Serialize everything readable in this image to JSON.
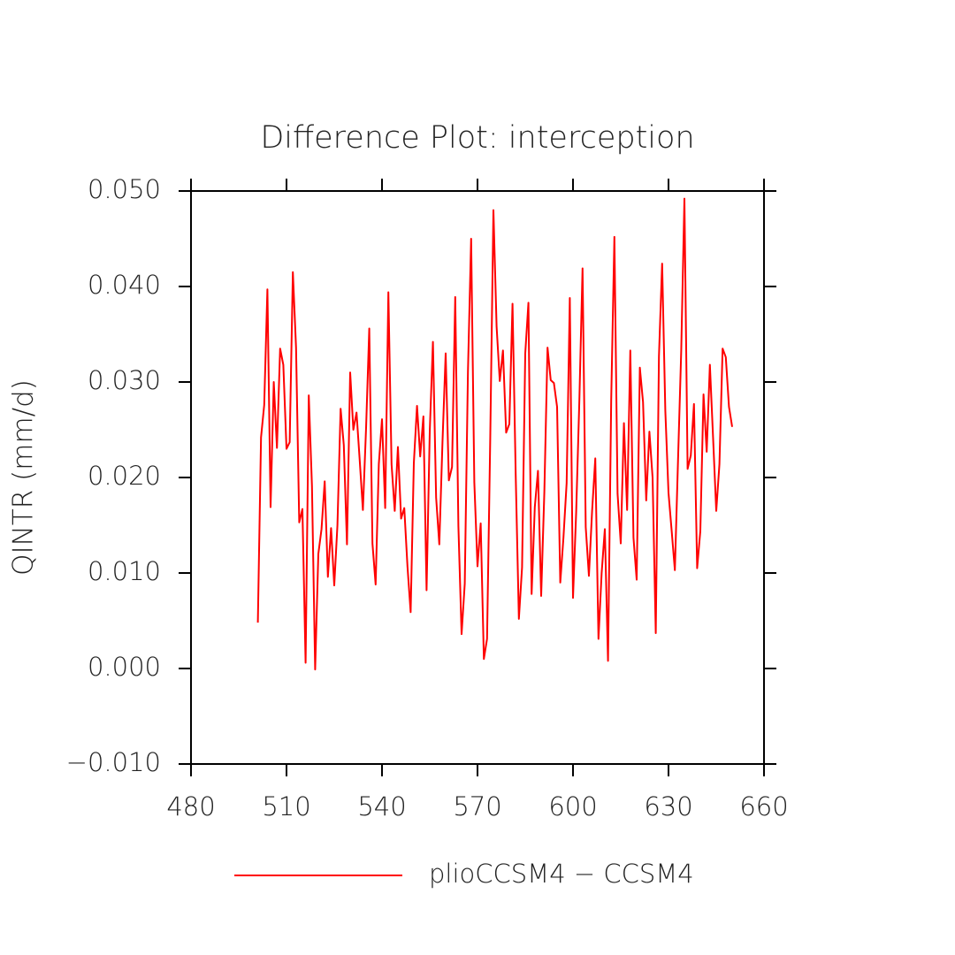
{
  "chart_data": {
    "type": "line",
    "title": "Difference Plot: interception",
    "y_label": "QINTR  (mm/d)",
    "x": [
      501,
      502,
      503,
      504,
      505,
      506,
      507,
      508,
      509,
      510,
      511,
      512,
      513,
      514,
      515,
      516,
      517,
      518,
      519,
      520,
      521,
      522,
      523,
      524,
      525,
      526,
      527,
      528,
      529,
      530,
      531,
      532,
      533,
      534,
      535,
      536,
      537,
      538,
      539,
      540,
      541,
      542,
      543,
      544,
      545,
      546,
      547,
      548,
      549,
      550,
      551,
      552,
      553,
      554,
      555,
      556,
      557,
      558,
      559,
      560,
      561,
      562,
      563,
      564,
      565,
      566,
      567,
      568,
      569,
      570,
      571,
      572,
      573,
      574,
      575,
      576,
      577,
      578,
      579,
      580,
      581,
      582,
      583,
      584,
      585,
      586,
      587,
      588,
      589,
      590,
      591,
      592,
      593,
      594,
      595,
      596,
      597,
      598,
      599,
      600,
      601,
      602,
      603,
      604,
      605,
      606,
      607,
      608,
      609,
      610,
      611,
      612,
      613,
      614,
      615,
      616,
      617,
      618,
      619,
      620,
      621,
      622,
      623,
      624,
      625,
      626,
      627,
      628,
      629,
      630,
      631,
      632,
      633,
      634,
      635,
      636,
      637,
      638,
      639,
      640,
      641,
      642,
      643,
      644,
      645,
      646,
      647,
      648,
      649,
      650
    ],
    "series": [
      {
        "name": "plioCCSM4 − CCSM4",
        "color": "#ff0000",
        "values": [
          0.0048,
          0.0242,
          0.0276,
          0.0397,
          0.0169,
          0.03,
          0.0231,
          0.0335,
          0.0318,
          0.023,
          0.0237,
          0.0415,
          0.0336,
          0.0153,
          0.0167,
          0.0006,
          0.0286,
          0.0191,
          -0.0001,
          0.012,
          0.0146,
          0.0196,
          0.0096,
          0.0147,
          0.0087,
          0.015,
          0.0272,
          0.0234,
          0.013,
          0.031,
          0.025,
          0.0268,
          0.0218,
          0.0166,
          0.0252,
          0.0356,
          0.0131,
          0.0088,
          0.0214,
          0.0261,
          0.0168,
          0.0394,
          0.0214,
          0.0165,
          0.0232,
          0.0157,
          0.0168,
          0.0107,
          0.0059,
          0.0215,
          0.0275,
          0.0222,
          0.0264,
          0.0082,
          0.0248,
          0.0342,
          0.0179,
          0.013,
          0.0237,
          0.033,
          0.0197,
          0.0211,
          0.0389,
          0.0149,
          0.0036,
          0.0089,
          0.0311,
          0.045,
          0.0195,
          0.0107,
          0.0152,
          0.001,
          0.0031,
          0.024,
          0.048,
          0.0358,
          0.0301,
          0.0333,
          0.0247,
          0.0256,
          0.0382,
          0.0203,
          0.0052,
          0.0106,
          0.033,
          0.0383,
          0.0078,
          0.0169,
          0.0207,
          0.0076,
          0.0185,
          0.0336,
          0.0302,
          0.0299,
          0.0274,
          0.009,
          0.0137,
          0.0194,
          0.0388,
          0.0074,
          0.0164,
          0.0281,
          0.0419,
          0.0148,
          0.0097,
          0.0165,
          0.022,
          0.0031,
          0.01,
          0.0146,
          0.0008,
          0.0281,
          0.0452,
          0.0183,
          0.0131,
          0.0257,
          0.0166,
          0.0333,
          0.0137,
          0.0093,
          0.0315,
          0.0279,
          0.0176,
          0.0248,
          0.02,
          0.0037,
          0.0327,
          0.0424,
          0.027,
          0.0184,
          0.0144,
          0.0103,
          0.0219,
          0.0333,
          0.0492,
          0.0209,
          0.0223,
          0.0277,
          0.0105,
          0.0144,
          0.0287,
          0.0227,
          0.0318,
          0.0242,
          0.0165,
          0.0214,
          0.0335,
          0.0326,
          0.0274,
          0.0253
        ]
      }
    ],
    "xlim": [
      480,
      660
    ],
    "xticks": [
      480,
      510,
      540,
      570,
      600,
      630,
      660
    ],
    "ylim": [
      -0.01,
      0.05
    ],
    "yticks": [
      {
        "value": -0.01,
        "label": "−0.010"
      },
      {
        "value": 0,
        "label": "0.000"
      },
      {
        "value": 0.01,
        "label": "0.010"
      },
      {
        "value": 0.02,
        "label": "0.020"
      },
      {
        "value": 0.03,
        "label": "0.030"
      },
      {
        "value": 0.04,
        "label": "0.040"
      },
      {
        "value": 0.05,
        "label": "0.050"
      }
    ],
    "legend_position": "bottom"
  }
}
